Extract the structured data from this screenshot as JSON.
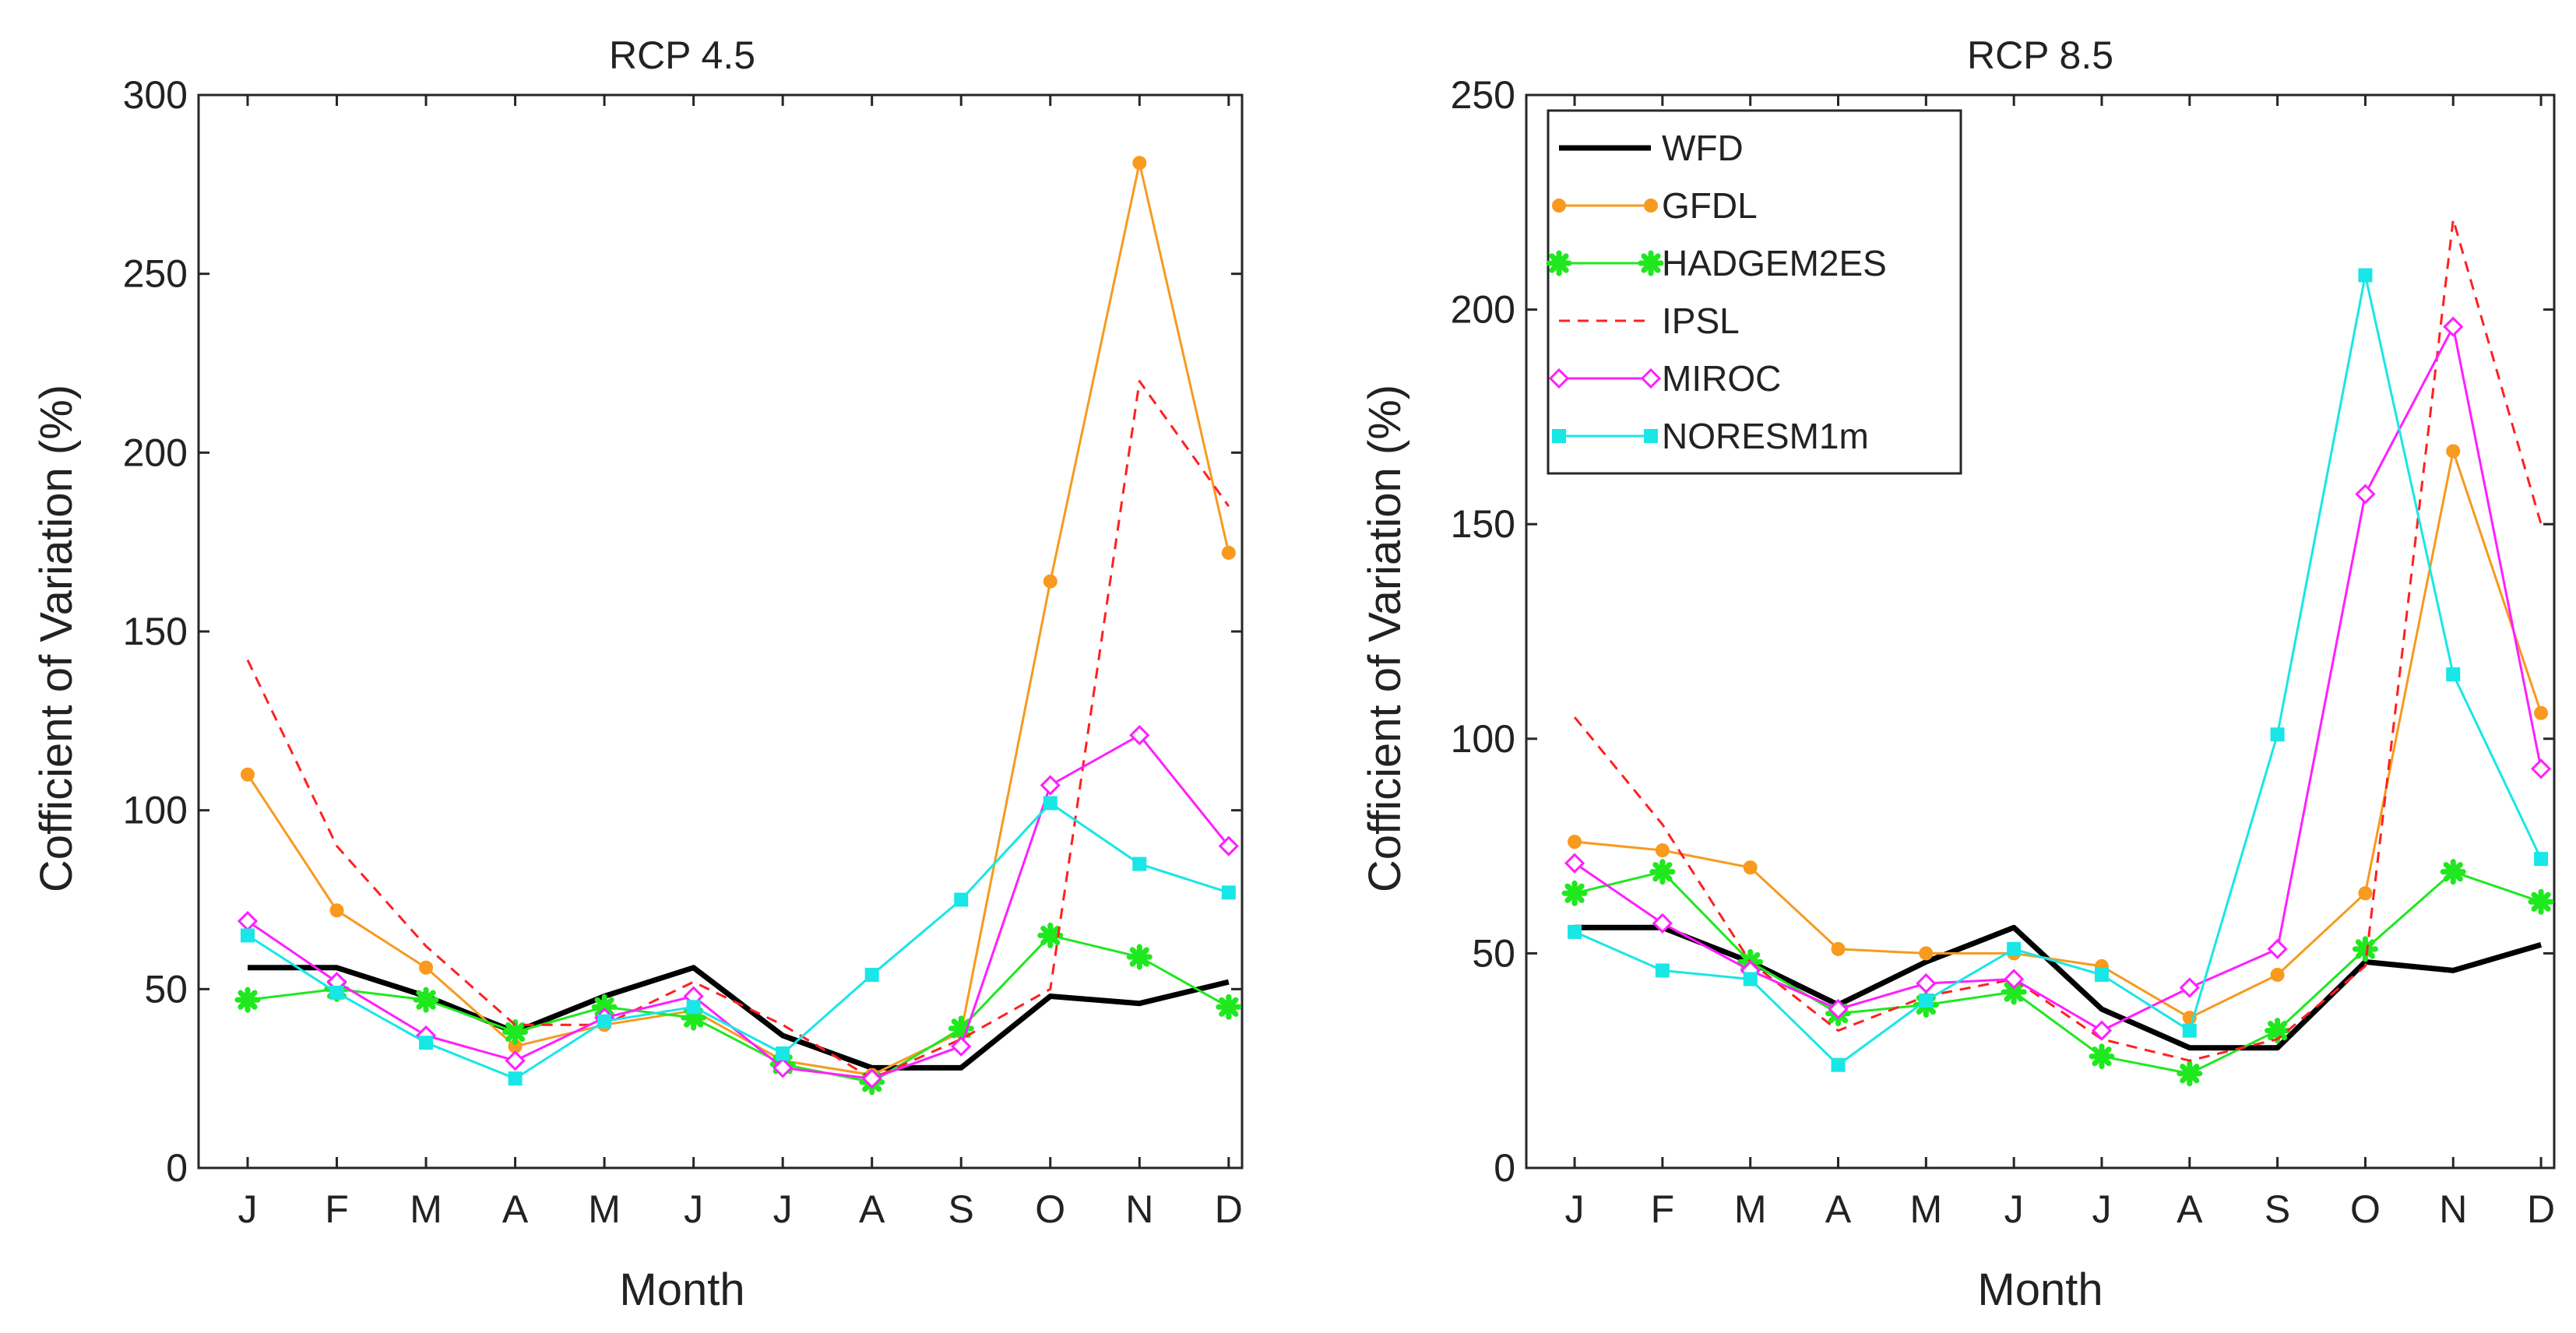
{
  "chart_data": [
    {
      "type": "line",
      "title": "RCP 4.5",
      "xlabel": "Month",
      "ylabel": "Cofficient of Variation (%)",
      "categories": [
        "J",
        "F",
        "M",
        "A",
        "M",
        "J",
        "J",
        "A",
        "S",
        "O",
        "N",
        "D"
      ],
      "ylim": [
        0,
        300
      ],
      "yticks": [
        "0",
        "50",
        "100",
        "150",
        "200",
        "250",
        "300"
      ],
      "grid": false,
      "legend": null,
      "series": [
        {
          "name": "WFD",
          "color": "#000000",
          "values": [
            56,
            56,
            48,
            38,
            48,
            56,
            37,
            28,
            28,
            48,
            46,
            52
          ]
        },
        {
          "name": "GFDL",
          "color": "#F79A1E",
          "values": [
            110,
            72,
            56,
            34,
            40,
            44,
            30,
            26,
            38,
            164,
            281,
            172
          ]
        },
        {
          "name": "HADGEM2ES",
          "color": "#1FE81F",
          "values": [
            47,
            50,
            47,
            38,
            45,
            42,
            29,
            24,
            39,
            65,
            59,
            45
          ]
        },
        {
          "name": "IPSL",
          "color": "#FF2020",
          "values": [
            142,
            90,
            62,
            40,
            40,
            52,
            40,
            25,
            36,
            50,
            220,
            185
          ]
        },
        {
          "name": "MIROC",
          "color": "#FF1FFF",
          "values": [
            69,
            52,
            37,
            30,
            42,
            48,
            28,
            25,
            34,
            107,
            121,
            90
          ]
        },
        {
          "name": "NORESM1m",
          "color": "#19E6E6",
          "values": [
            65,
            49,
            35,
            25,
            41,
            45,
            32,
            54,
            75,
            102,
            85,
            77
          ]
        }
      ]
    },
    {
      "type": "line",
      "title": "RCP 8.5",
      "xlabel": "Month",
      "ylabel": "Cofficient of Variation (%)",
      "categories": [
        "J",
        "F",
        "M",
        "A",
        "M",
        "J",
        "J",
        "A",
        "S",
        "O",
        "N",
        "D"
      ],
      "ylim": [
        0,
        250
      ],
      "yticks": [
        "0",
        "50",
        "100",
        "150",
        "200",
        "250"
      ],
      "grid": false,
      "legend": "top-left",
      "series": [
        {
          "name": "WFD",
          "color": "#000000",
          "values": [
            56,
            56,
            48,
            38,
            48,
            56,
            37,
            28,
            28,
            48,
            46,
            52
          ]
        },
        {
          "name": "GFDL",
          "color": "#F79A1E",
          "values": [
            76,
            74,
            70,
            51,
            50,
            50,
            47,
            35,
            45,
            64,
            167,
            106
          ]
        },
        {
          "name": "HADGEM2ES",
          "color": "#1FE81F",
          "values": [
            64,
            69,
            48,
            36,
            38,
            41,
            26,
            22,
            32,
            51,
            69,
            62
          ]
        },
        {
          "name": "IPSL",
          "color": "#FF2020",
          "values": [
            105,
            80,
            48,
            32,
            40,
            44,
            30,
            25,
            30,
            47,
            221,
            150
          ]
        },
        {
          "name": "MIROC",
          "color": "#FF1FFF",
          "values": [
            71,
            57,
            46,
            37,
            43,
            44,
            32,
            42,
            51,
            157,
            196,
            93
          ]
        },
        {
          "name": "NORESM1m",
          "color": "#19E6E6",
          "values": [
            55,
            46,
            44,
            24,
            39,
            51,
            45,
            32,
            101,
            208,
            115,
            72
          ]
        }
      ]
    }
  ]
}
